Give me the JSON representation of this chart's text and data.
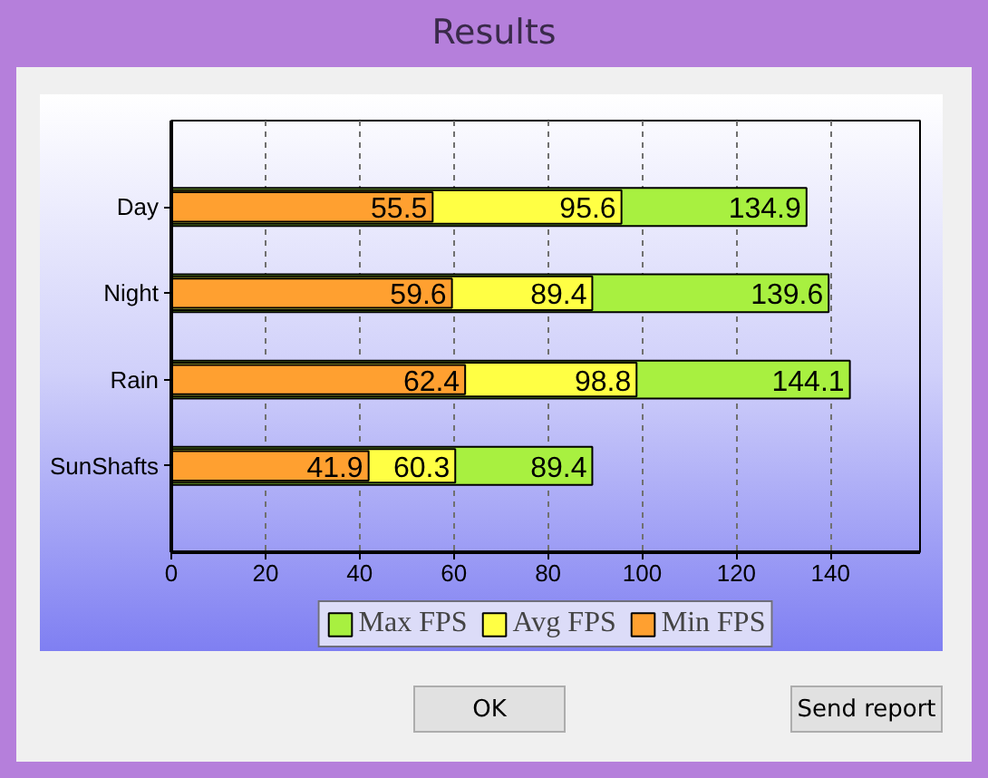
{
  "chart_data": {
    "type": "bar",
    "title": "Results",
    "orientation": "horizontal",
    "categories": [
      "Day",
      "Night",
      "Rain",
      "SunShafts"
    ],
    "series": [
      {
        "name": "Max FPS",
        "color": "#a8f040",
        "values": [
          134.9,
          139.6,
          144.1,
          89.4
        ]
      },
      {
        "name": "Avg FPS",
        "color": "#ffff44",
        "values": [
          95.6,
          89.4,
          98.8,
          60.3
        ]
      },
      {
        "name": "Min FPS",
        "color": "#ffa030",
        "values": [
          55.5,
          59.6,
          62.4,
          41.9
        ]
      }
    ],
    "xlim": [
      0,
      159
    ],
    "xticks": [
      0,
      20,
      40,
      60,
      80,
      100,
      120,
      140
    ],
    "grid": "x",
    "legend": "bottom",
    "data_labels": true,
    "annotations": [
      "OK",
      "Send report"
    ]
  }
}
